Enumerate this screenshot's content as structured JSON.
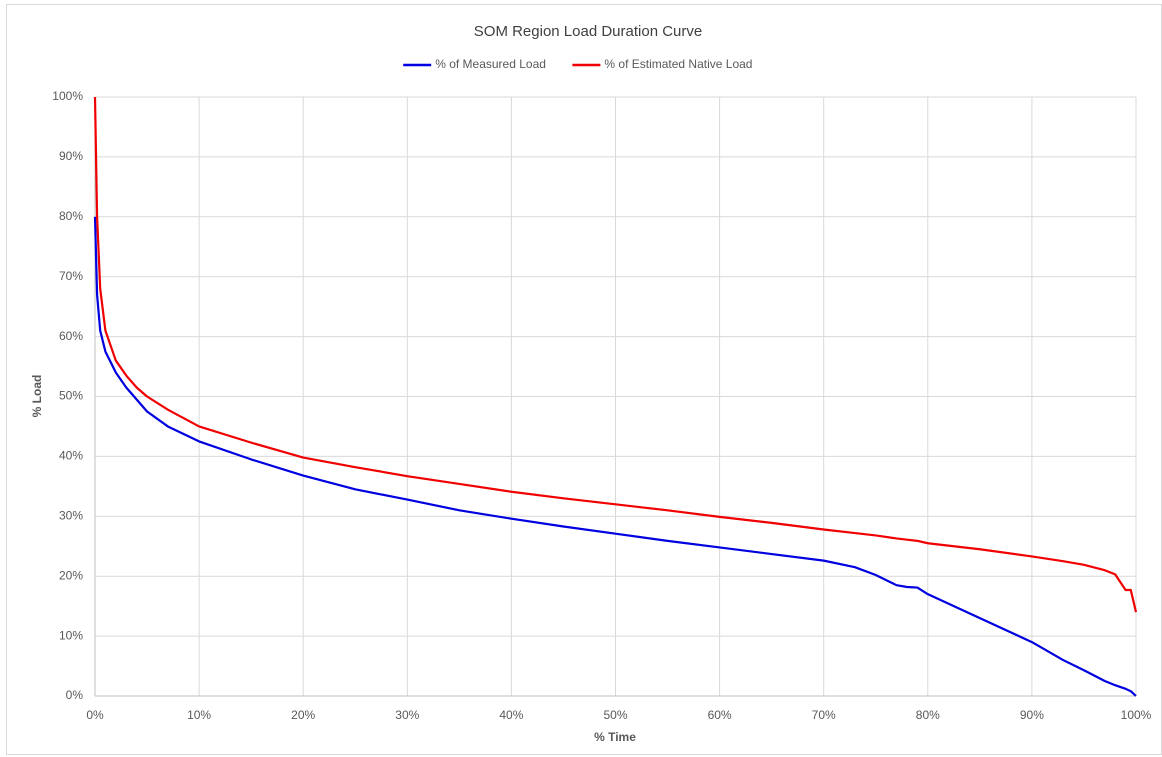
{
  "chart_data": {
    "type": "line",
    "title": "SOM Region  Load Duration Curve",
    "x_label": "% Time",
    "y_label": "% Load",
    "x": [
      0,
      0.2,
      0.5,
      1,
      2,
      3,
      4,
      5,
      7,
      10,
      15,
      20,
      25,
      30,
      35,
      40,
      45,
      50,
      55,
      60,
      65,
      70,
      73,
      75,
      77,
      78,
      79,
      80,
      85,
      90,
      93,
      95,
      97,
      98,
      99,
      99.5,
      100
    ],
    "series": [
      {
        "name": "% of Measured Load",
        "color": "#0000e0",
        "values": [
          80,
          67,
          61,
          57.5,
          54,
          51.5,
          49.5,
          47.5,
          45,
          42.5,
          39.5,
          36.8,
          34.5,
          32.8,
          31,
          29.6,
          28.3,
          27.1,
          25.9,
          24.8,
          23.7,
          22.6,
          21.5,
          20.2,
          18.5,
          18.2,
          18.1,
          17,
          13,
          9,
          6,
          4.3,
          2.5,
          1.8,
          1.2,
          0.8,
          0
        ]
      },
      {
        "name": "% of Estimated Native Load",
        "color": "#f00000",
        "values": [
          100,
          80,
          68,
          61,
          56,
          53.5,
          51.5,
          50,
          47.8,
          45,
          42.3,
          39.8,
          38.2,
          36.7,
          35.4,
          34.1,
          33,
          32,
          31,
          29.9,
          28.9,
          27.8,
          27.2,
          26.8,
          26.3,
          26.1,
          25.9,
          25.5,
          24.5,
          23.3,
          22.5,
          21.9,
          21,
          20.3,
          17.7,
          17.7,
          14
        ]
      }
    ],
    "xlim": [
      0,
      100
    ],
    "xticks": [
      {
        "value": 0,
        "label": "0%"
      },
      {
        "value": 10,
        "label": "10%"
      },
      {
        "value": 20,
        "label": "20%"
      },
      {
        "value": 30,
        "label": "30%"
      },
      {
        "value": 40,
        "label": "40%"
      },
      {
        "value": 50,
        "label": "50%"
      },
      {
        "value": 60,
        "label": "60%"
      },
      {
        "value": 70,
        "label": "70%"
      },
      {
        "value": 80,
        "label": "80%"
      },
      {
        "value": 90,
        "label": "90%"
      },
      {
        "value": 100,
        "label": "100%"
      }
    ],
    "ylim": [
      0,
      100
    ],
    "yticks": [
      {
        "value": 0,
        "label": "0%"
      },
      {
        "value": 10,
        "label": "10%"
      },
      {
        "value": 20,
        "label": "20%"
      },
      {
        "value": 30,
        "label": "30%"
      },
      {
        "value": 40,
        "label": "40%"
      },
      {
        "value": 50,
        "label": "50%"
      },
      {
        "value": 60,
        "label": "60%"
      },
      {
        "value": 70,
        "label": "70%"
      },
      {
        "value": 80,
        "label": "80%"
      },
      {
        "value": 90,
        "label": "90%"
      },
      {
        "value": 100,
        "label": "100%"
      }
    ],
    "grid": true,
    "legend": "top"
  }
}
